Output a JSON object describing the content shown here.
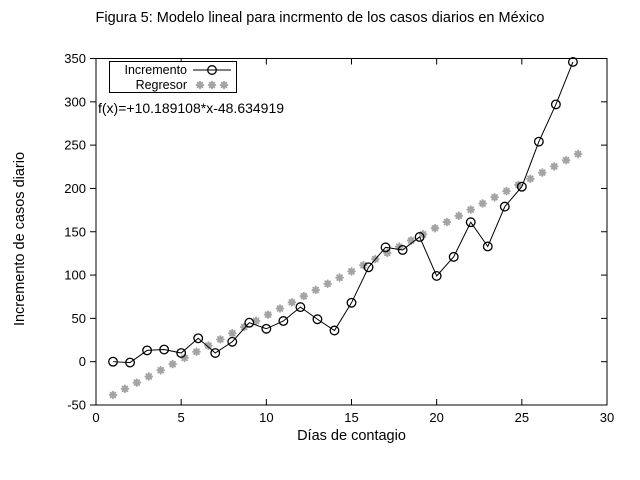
{
  "title": "Figura 5: Modelo lineal para incrmento de los casos diarios en México",
  "annotation": "f(x)=+10.189108*x-48.634919",
  "legend": {
    "incremento_label": "Incremento",
    "regresor_label": "Regresor",
    "position": "top-left-inside"
  },
  "colors": {
    "series_line": "#000000",
    "marker_stroke": "#000000",
    "regressor_gray": "#a4a4a4",
    "background": "#ffffff",
    "axis": "#000000"
  },
  "chart_data": {
    "type": "line",
    "title": "Figura 5: Modelo lineal para incrmento de los casos diarios en México",
    "xlabel": "Días de contagio",
    "ylabel": "Incremento de casos diario",
    "xlim": [
      0,
      30
    ],
    "ylim": [
      -50,
      350
    ],
    "xticks": [
      0,
      5,
      10,
      15,
      20,
      25,
      30
    ],
    "yticks": [
      -50,
      0,
      50,
      100,
      150,
      200,
      250,
      300,
      350
    ],
    "grid": false,
    "legend_position": "top-left",
    "series": [
      {
        "name": "Incremento",
        "style": "linespoints-open-circle",
        "x": [
          1,
          2,
          3,
          4,
          5,
          6,
          7,
          8,
          9,
          10,
          11,
          12,
          13,
          14,
          15,
          16,
          17,
          18,
          19,
          20,
          21,
          22,
          23,
          24,
          25,
          26,
          27,
          28
        ],
        "y": [
          0,
          -1,
          13,
          14,
          10,
          27,
          10,
          23,
          45,
          38,
          47,
          63,
          49,
          36,
          68,
          109,
          132,
          129,
          144,
          99,
          121,
          161,
          133,
          179,
          202,
          254,
          297,
          346
        ]
      },
      {
        "name": "Regresor",
        "style": "gray-asterisk-dots",
        "fit": {
          "slope": 10.189108,
          "intercept": -48.634919,
          "x_start": 1.0,
          "x_end": 28.3,
          "step": 0.7
        }
      }
    ]
  }
}
